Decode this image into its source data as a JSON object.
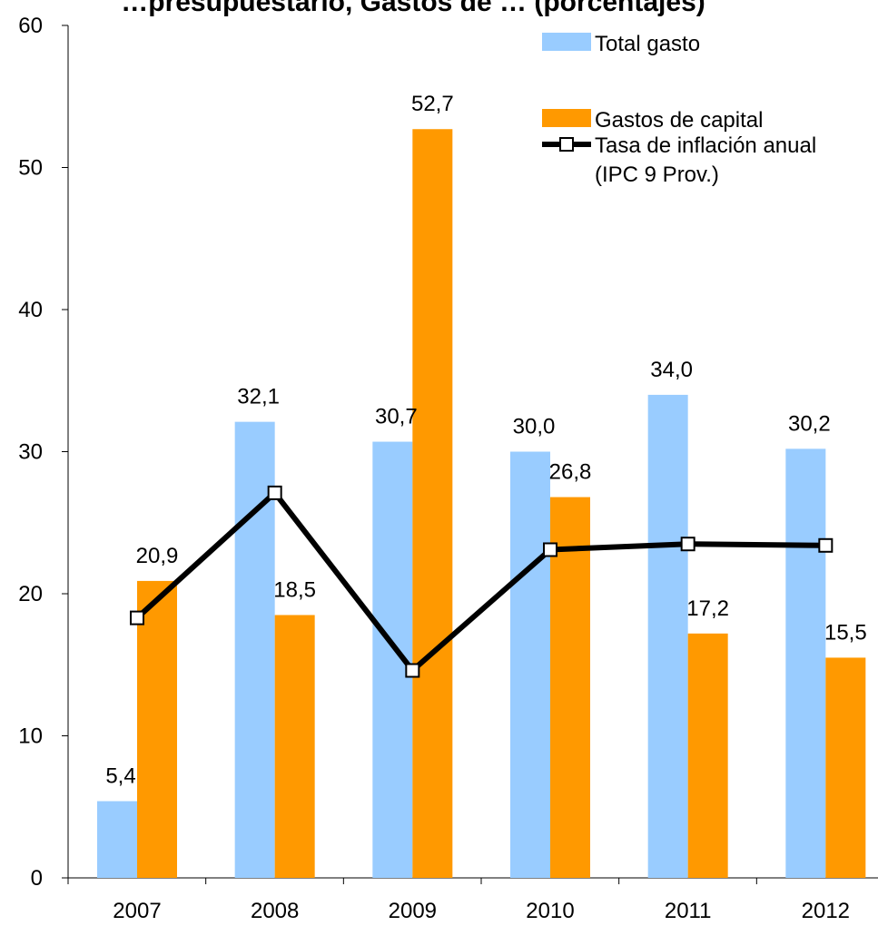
{
  "chart_data": {
    "type": "bar",
    "title": "…presupuestario, Gastos de … (porcentajes)",
    "categories": [
      "2007",
      "2008",
      "2009",
      "2010",
      "2011",
      "2012"
    ],
    "series": [
      {
        "name": "Total gasto",
        "type": "bar",
        "color": "#99ccff",
        "values": [
          5.4,
          32.1,
          30.7,
          30.0,
          34.0,
          30.2
        ],
        "labels": [
          "5,4",
          "32,1",
          "30,7",
          "30,0",
          "34,0",
          "30,2"
        ]
      },
      {
        "name": "Gastos de capital",
        "type": "bar",
        "color": "#ff9900",
        "values": [
          20.9,
          18.5,
          52.7,
          26.8,
          17.2,
          15.5
        ],
        "labels": [
          "20,9",
          "18,5",
          "52,7",
          "26,8",
          "17,2",
          "15,5"
        ]
      },
      {
        "name": "Tasa de inflación anual",
        "name_line2": "(IPC 9 Prov.)",
        "type": "line",
        "color": "#000000",
        "values": [
          18.3,
          27.1,
          14.6,
          23.1,
          23.5,
          23.4
        ]
      }
    ],
    "ylim": [
      0,
      60
    ],
    "yticks": [
      "0",
      "10",
      "20",
      "30",
      "40",
      "50",
      "60"
    ],
    "grid": false,
    "legend_position": "top-right"
  }
}
